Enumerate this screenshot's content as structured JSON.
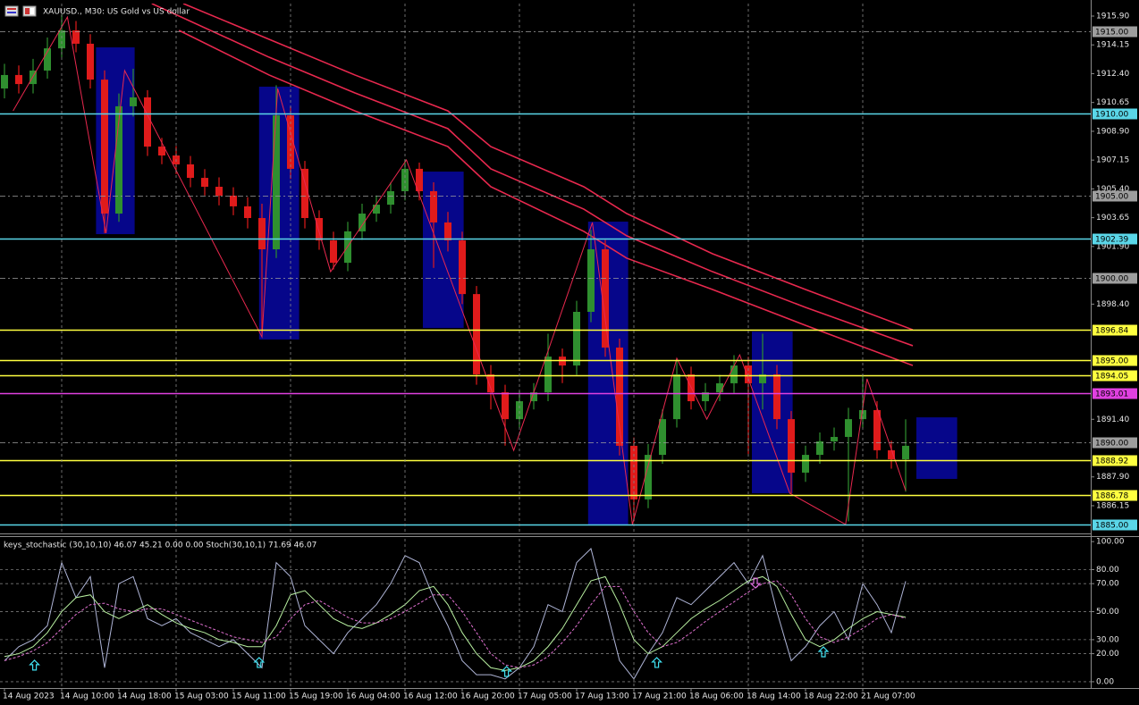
{
  "chart_data": [
    {
      "type": "candlestick",
      "title": "XAUUSD., M30:  US Gold vs US dollar",
      "xlim": [
        -0.3125,
        75.9375
      ],
      "ylim": [
        1884.52,
        1916.66
      ],
      "yticks": [
        {
          "value": 1915.9,
          "label": "1915.90"
        },
        1914.15,
        {
          "value": 1912.4,
          "label": "1912.40"
        },
        1910.65,
        {
          "value": 1908.9,
          "label": "1908.90"
        },
        1907.15,
        {
          "value": 1905.4,
          "label": "1905.40"
        },
        1903.65,
        {
          "value": 1901.9,
          "label": "1901.90"
        },
        {
          "value": 1898.4,
          "label": "1898.40"
        },
        {
          "value": 1891.4,
          "label": "1891.40"
        },
        {
          "value": 1887.9,
          "label": "1887.90"
        },
        1886.15
      ],
      "up_color": "#2f8f2f",
      "down_color": "#e01b1b",
      "open": [
        1911.5,
        1912.32,
        1911.77,
        1912.59,
        1913.94,
        1915.03,
        1914.22,
        1912.04,
        1903.9,
        1910.42,
        1910.96,
        1907.97,
        1907.43,
        1906.89,
        1906.07,
        1905.53,
        1904.99,
        1904.34,
        1903.63,
        1901.73,
        1909.87,
        1906.62,
        1903.63,
        1902.27,
        1900.91,
        1902.82,
        1903.9,
        1904.44,
        1905.26,
        1906.62,
        1905.26,
        1903.36,
        1902.27,
        1899.01,
        1894.13,
        1893.04,
        1891.41,
        1892.5,
        1893.04,
        1895.21,
        1894.67,
        1897.93,
        1901.73,
        1895.76,
        1889.79,
        1886.53,
        1889.24,
        1891.41,
        1894.13,
        1892.5,
        1893.04,
        1893.59,
        1894.67,
        1893.59,
        1894.13,
        1891.41,
        1888.16,
        1889.24,
        1890.06,
        1890.33,
        1891.41,
        1891.96,
        1889.52,
        1888.97
      ],
      "high": [
        1913.0,
        1912.9,
        1913.3,
        1914.6,
        1916.0,
        1915.6,
        1914.8,
        1912.6,
        1911.2,
        1912.7,
        1911.4,
        1908.5,
        1908.0,
        1907.4,
        1906.6,
        1906.1,
        1905.5,
        1904.9,
        1904.5,
        1911.7,
        1910.4,
        1907.1,
        1904.1,
        1902.8,
        1903.4,
        1904.5,
        1905.0,
        1905.8,
        1907.2,
        1907.0,
        1905.8,
        1904.0,
        1902.8,
        1899.5,
        1894.7,
        1893.5,
        1893.1,
        1893.6,
        1896.6,
        1895.7,
        1898.6,
        1902.9,
        1902.3,
        1896.3,
        1890.3,
        1889.9,
        1892.0,
        1895.0,
        1894.6,
        1893.6,
        1894.1,
        1895.3,
        1895.2,
        1896.6,
        1894.7,
        1891.9,
        1889.8,
        1890.6,
        1890.9,
        1892.1,
        1894.1,
        1892.5,
        1890.1,
        1891.4
      ],
      "low": [
        1910.9,
        1911.2,
        1911.2,
        1912.1,
        1913.4,
        1913.7,
        1911.5,
        1902.7,
        1903.4,
        1909.8,
        1907.4,
        1906.9,
        1906.3,
        1905.5,
        1905.0,
        1904.4,
        1903.8,
        1903.0,
        1896.6,
        1901.2,
        1906.0,
        1903.0,
        1901.7,
        1900.5,
        1900.4,
        1902.3,
        1903.4,
        1903.9,
        1904.7,
        1904.7,
        1900.6,
        1901.6,
        1898.4,
        1893.5,
        1892.0,
        1889.8,
        1890.9,
        1892.0,
        1892.5,
        1893.6,
        1894.1,
        1897.3,
        1895.2,
        1889.2,
        1885.2,
        1886.0,
        1888.7,
        1890.9,
        1892.0,
        1891.9,
        1892.5,
        1893.0,
        1889.3,
        1892.0,
        1890.8,
        1886.9,
        1887.6,
        1888.7,
        1889.5,
        1885.2,
        1890.9,
        1889.0,
        1888.4,
        1887.0
      ],
      "close": [
        1912.32,
        1911.77,
        1912.59,
        1913.94,
        1915.03,
        1914.22,
        1912.04,
        1903.9,
        1910.42,
        1910.96,
        1907.97,
        1907.43,
        1906.89,
        1906.07,
        1905.53,
        1904.99,
        1904.34,
        1903.63,
        1901.73,
        1909.87,
        1906.62,
        1903.63,
        1902.27,
        1900.91,
        1902.82,
        1903.9,
        1904.44,
        1905.26,
        1906.62,
        1905.26,
        1903.36,
        1902.27,
        1899.01,
        1894.13,
        1893.04,
        1891.41,
        1892.5,
        1893.04,
        1895.21,
        1894.67,
        1897.93,
        1901.73,
        1895.76,
        1889.79,
        1886.53,
        1889.24,
        1891.41,
        1894.13,
        1892.5,
        1893.04,
        1893.59,
        1894.67,
        1893.59,
        1894.13,
        1891.41,
        1888.16,
        1889.24,
        1890.06,
        1890.33,
        1891.41,
        1891.96,
        1889.52,
        1888.97,
        1889.79
      ],
      "zones": {
        "color": "#06068a",
        "items": [
          {
            "x": [
              6.4,
              9.1
            ],
            "y": [
              1902.65,
              1914.0
            ]
          },
          {
            "x": [
              17.8,
              20.6
            ],
            "y": [
              1896.25,
              1911.61
            ]
          },
          {
            "x": [
              29.25,
              32.1
            ],
            "y": [
              1896.95,
              1906.45
            ]
          },
          {
            "x": [
              40.8,
              43.6
            ],
            "y": [
              1884.95,
              1903.41
            ]
          },
          {
            "x": [
              52.25,
              55.1
            ],
            "y": [
              1886.91,
              1896.73
            ]
          },
          {
            "x": [
              63.75,
              66.6
            ],
            "y": [
              1887.78,
              1891.52
            ]
          }
        ]
      },
      "overlays": [
        {
          "color": "#e8284e",
          "x": [
            12.5,
            18.5,
            24.5,
            31,
            34,
            40.5,
            43.5,
            49.5,
            56,
            63.5
          ],
          "values": [
            1916.66,
            1914.49,
            1912.32,
            1910.14,
            1907.97,
            1905.53,
            1903.9,
            1901.46,
            1899.29,
            1896.84
          ]
        },
        {
          "color": "#e8284e",
          "x": [
            10.3,
            18.5,
            24.5,
            31,
            34,
            40.5,
            43.5,
            49.5,
            56,
            63.5
          ],
          "values": [
            1916.66,
            1913.4,
            1911.23,
            1909.06,
            1906.62,
            1904.17,
            1902.55,
            1900.37,
            1898.2,
            1895.87
          ]
        },
        {
          "color": "#e8284e",
          "x": [
            12.2,
            18.5,
            24.5,
            31,
            34,
            40.5,
            43.5,
            49.5,
            56,
            63.5
          ],
          "values": [
            1915.03,
            1912.32,
            1910.14,
            1907.97,
            1905.53,
            1902.82,
            1901.19,
            1899.29,
            1897.11,
            1894.67
          ]
        }
      ],
      "zigzag": {
        "color": "#e8284e",
        "x": [
          0.6,
          4.4,
          7.1,
          8.4,
          18,
          19.1,
          22.8,
          28.1,
          35.6,
          41.1,
          43.9,
          47,
          49.1,
          51.4,
          54.9,
          58.8,
          60.3,
          63
        ],
        "values": [
          1910.14,
          1915.84,
          1902.71,
          1912.59,
          1896.41,
          1911.5,
          1900.37,
          1907.16,
          1889.51,
          1903.36,
          1885.01,
          1895.11,
          1891.41,
          1895.32,
          1886.91,
          1885.01,
          1893.86,
          1887.07
        ]
      },
      "levels": [
        {
          "value": 1915,
          "label": "1915.00",
          "color": "#9e9e9e",
          "dash": true
        },
        {
          "value": 1910,
          "label": "1910.00",
          "color": "#5ad6e8"
        },
        {
          "value": 1905,
          "label": "1905.00",
          "color": "#9e9e9e",
          "dash": true
        },
        {
          "value": 1902.39,
          "label": "1902.39",
          "color": "#5ad6e8"
        },
        {
          "value": 1900,
          "label": "1900.00",
          "color": "#9e9e9e",
          "dash": true
        },
        {
          "value": 1896.84,
          "label": "1896.84",
          "color": "#ffff40"
        },
        {
          "value": 1895,
          "label": "1895.00",
          "color": "#ffff40"
        },
        {
          "value": 1894.05,
          "label": "1894.05",
          "color": "#ffff40"
        },
        {
          "value": 1893.01,
          "label": "1893.01",
          "color": "#e040e0"
        },
        {
          "value": 1890,
          "label": "1890.00",
          "color": "#9e9e9e",
          "dash": true
        },
        {
          "value": 1888.92,
          "label": "1888.92",
          "color": "#ffff40"
        },
        {
          "value": 1886.78,
          "label": "1886.78",
          "color": "#ffff40"
        },
        {
          "value": 1885,
          "label": "1885.00",
          "color": "#5ad6e8"
        }
      ]
    },
    {
      "type": "line",
      "title": "keys_stochastic (30,10,10) 46.07 45.21 0.00 0.00 Stoch(30,10,1) 71.69 46.07",
      "xlim": [
        -0.3125,
        75.9375
      ],
      "ylim": [
        -4.5,
        102
      ],
      "yticks": [
        {
          "value": 100,
          "label": "100.00"
        },
        {
          "value": 80,
          "label": "80.00"
        },
        {
          "value": 70,
          "label": "70.00"
        },
        {
          "value": 50,
          "label": "50.00"
        },
        {
          "value": 30,
          "label": "30.00"
        },
        {
          "value": 20,
          "label": "20.00"
        },
        {
          "value": 0,
          "label": "0.00"
        }
      ],
      "grid": true,
      "series": [
        {
          "color": "#aeb4d6",
          "values": [
            15,
            25,
            30,
            40,
            85,
            60,
            75,
            10,
            70,
            75,
            45,
            40,
            45,
            35,
            30,
            25,
            30,
            20,
            10,
            85,
            75,
            40,
            30,
            20,
            35,
            45,
            55,
            70,
            90,
            85,
            60,
            40,
            15,
            5,
            5,
            2,
            10,
            25,
            55,
            50,
            85,
            95,
            55,
            15,
            2,
            20,
            35,
            60,
            55,
            65,
            75,
            85,
            70,
            90,
            50,
            15,
            25,
            40,
            50,
            30,
            70,
            55,
            35,
            71.69
          ]
        },
        {
          "color": "#b8f0a0",
          "values": [
            18,
            20,
            25,
            35,
            50,
            60,
            62,
            50,
            45,
            50,
            55,
            48,
            42,
            38,
            35,
            30,
            28,
            25,
            25,
            40,
            62,
            65,
            55,
            45,
            40,
            38,
            42,
            48,
            55,
            65,
            68,
            55,
            35,
            20,
            10,
            8,
            10,
            15,
            25,
            38,
            55,
            72,
            75,
            55,
            30,
            20,
            25,
            35,
            45,
            52,
            58,
            65,
            72,
            75,
            68,
            48,
            30,
            25,
            30,
            38,
            45,
            50,
            48,
            46.07
          ]
        },
        {
          "color": "#e070d0",
          "dash": true,
          "values": [
            15,
            18,
            22,
            28,
            38,
            48,
            55,
            56,
            52,
            50,
            52,
            52,
            48,
            44,
            40,
            36,
            32,
            30,
            28,
            32,
            45,
            55,
            58,
            52,
            46,
            42,
            42,
            45,
            50,
            56,
            62,
            62,
            50,
            35,
            20,
            12,
            10,
            12,
            18,
            28,
            40,
            55,
            68,
            68,
            50,
            35,
            25,
            28,
            35,
            43,
            50,
            57,
            64,
            70,
            72,
            62,
            45,
            32,
            28,
            32,
            38,
            45,
            48,
            45.21
          ]
        }
      ],
      "signals": [
        {
          "x": 2.1,
          "value": 11.5,
          "direction": "up",
          "color": "#40e0f0"
        },
        {
          "x": 17.8,
          "value": 13.4,
          "direction": "up",
          "color": "#40e0f0"
        },
        {
          "x": 35.1,
          "value": 7,
          "direction": "up",
          "color": "#40e0f0"
        },
        {
          "x": 45.6,
          "value": 13.4,
          "direction": "up",
          "color": "#40e0f0"
        },
        {
          "x": 57.25,
          "value": 21,
          "direction": "up",
          "color": "#40e0f0"
        },
        {
          "x": 52.5,
          "value": 70.7,
          "direction": "down",
          "color": "#e070e0"
        }
      ],
      "xticks": [
        {
          "value": 0,
          "label": "14 Aug 2023"
        },
        {
          "value": 4,
          "label": "14 Aug 10:00"
        },
        {
          "value": 8,
          "label": "14 Aug 18:00"
        },
        {
          "value": 12,
          "label": "15 Aug 03:00"
        },
        {
          "value": 16,
          "label": "15 Aug 11:00"
        },
        {
          "value": 20,
          "label": "15 Aug 19:00"
        },
        {
          "value": 24,
          "label": "16 Aug 04:00"
        },
        {
          "value": 28,
          "label": "16 Aug 12:00"
        },
        {
          "value": 32,
          "label": "16 Aug 20:00"
        },
        {
          "value": 36,
          "label": "17 Aug 05:00"
        },
        {
          "value": 40,
          "label": "17 Aug 13:00"
        },
        {
          "value": 44,
          "label": "17 Aug 21:00"
        },
        {
          "value": 48,
          "label": "18 Aug 06:00"
        },
        {
          "value": 52,
          "label": "18 Aug 14:00"
        },
        {
          "value": 56,
          "label": "18 Aug 22:00"
        },
        {
          "value": 60,
          "label": "21 Aug 07:00"
        }
      ]
    }
  ]
}
